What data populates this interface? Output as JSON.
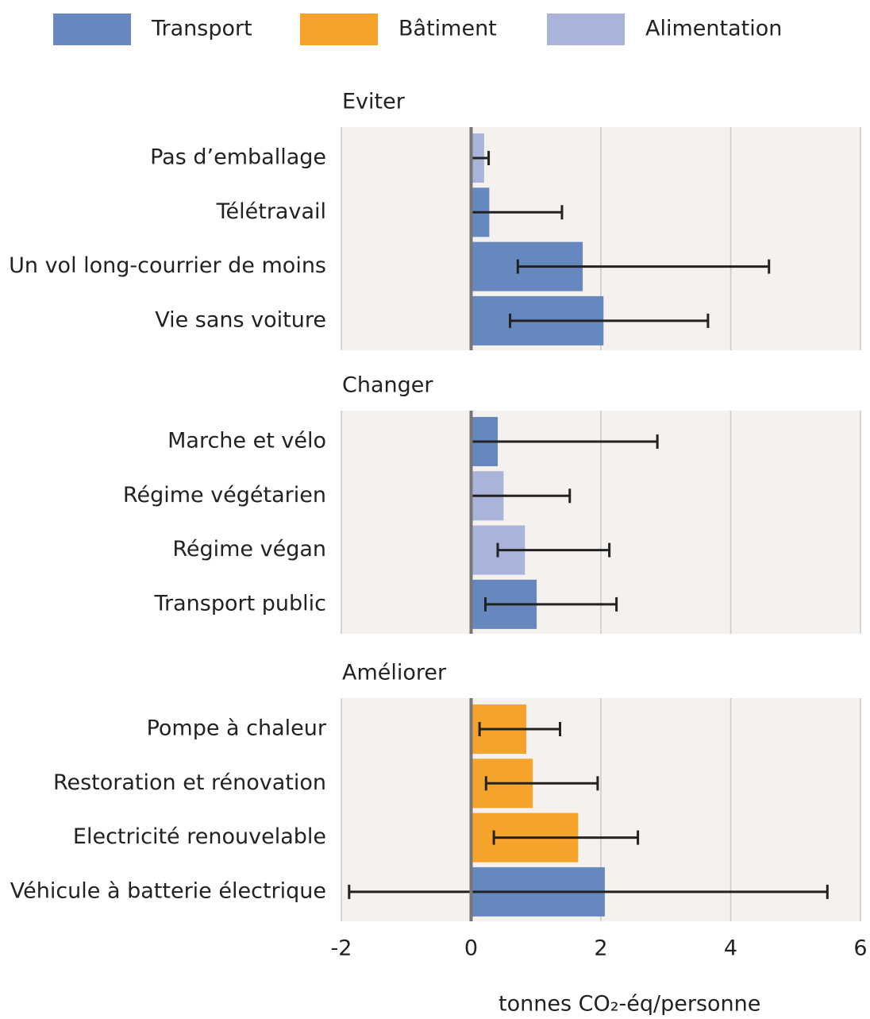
{
  "chart_data": {
    "type": "bar",
    "legend": [
      {
        "name": "Transport",
        "color": "#6688bf"
      },
      {
        "name": "Bâtiment",
        "color": "#f5a32a"
      },
      {
        "name": "Alimentation",
        "color": "#aab4db"
      }
    ],
    "panels": [
      {
        "title": "Eviter",
        "categories": [
          "Pas d’emballage",
          "Télétravail",
          "Un vol long-courrier de moins",
          "Vie sans voiture"
        ],
        "groups": [
          2,
          0,
          0,
          0
        ],
        "values": [
          0.2,
          0.28,
          1.72,
          2.04
        ],
        "err_low": [
          0,
          0,
          0.72,
          0.6
        ],
        "err_high": [
          0.27,
          1.4,
          4.59,
          3.65
        ]
      },
      {
        "title": "Changer",
        "categories": [
          "Marche et vélo",
          "Régime végétarien",
          "Régime végan",
          "Transport public"
        ],
        "groups": [
          0,
          2,
          2,
          0
        ],
        "values": [
          0.41,
          0.5,
          0.83,
          1.01
        ],
        "err_low": [
          0,
          0,
          0.41,
          0.22
        ],
        "err_high": [
          2.87,
          1.52,
          2.13,
          2.24
        ]
      },
      {
        "title": "Améliorer",
        "categories": [
          "Pompe à chaleur",
          "Restoration et rénovation",
          "Electricité renouvelable",
          "Véhicule à batterie électrique"
        ],
        "groups": [
          1,
          1,
          1,
          0
        ],
        "values": [
          0.85,
          0.95,
          1.65,
          2.06
        ],
        "err_low": [
          0.13,
          0.23,
          0.35,
          -1.88
        ],
        "err_high": [
          1.37,
          1.95,
          2.57,
          5.49
        ]
      }
    ],
    "xlim": [
      -2,
      6
    ],
    "xticks": [
      -2,
      0,
      2,
      4,
      6
    ],
    "xlabel": "tonnes CO₂-éq/personne",
    "grid": true
  }
}
